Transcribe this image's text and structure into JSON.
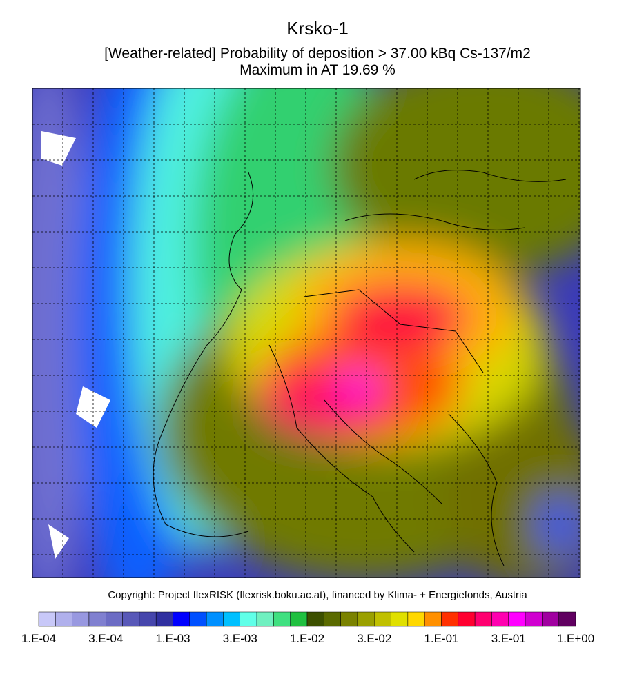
{
  "header": {
    "title": "Krsko-1",
    "subtitle": "[Weather-related] Probability of deposition >  37.00 kBq Cs-137/m2",
    "maximum": "Maximum in AT  19.69 %"
  },
  "footer": {
    "copyright": "Copyright: Project flexRISK (flexrisk.boku.ac.at), financed by Klima- + Energiefonds, Austria"
  },
  "colorbar": {
    "colors": [
      "#c8c8f8",
      "#b0b0ec",
      "#9898e0",
      "#8080d0",
      "#6c6cc4",
      "#5858b8",
      "#4646ac",
      "#3030a0",
      "#0000ff",
      "#0050ff",
      "#0090ff",
      "#00c0ff",
      "#60ffe8",
      "#70f0c0",
      "#40e080",
      "#20c040",
      "#3c5000",
      "#5a6a00",
      "#7a8200",
      "#9aa000",
      "#c0c000",
      "#e0e000",
      "#ffd800",
      "#ff9000",
      "#ff3000",
      "#ff0030",
      "#ff0070",
      "#ff00b0",
      "#ff00ff",
      "#d000d0",
      "#a000a0",
      "#600060"
    ],
    "labels": [
      "1.E-04",
      "3.E-04",
      "1.E-03",
      "3.E-03",
      "1.E-02",
      "3.E-02",
      "1.E-01",
      "3.E-01",
      "1.E+00"
    ]
  }
}
